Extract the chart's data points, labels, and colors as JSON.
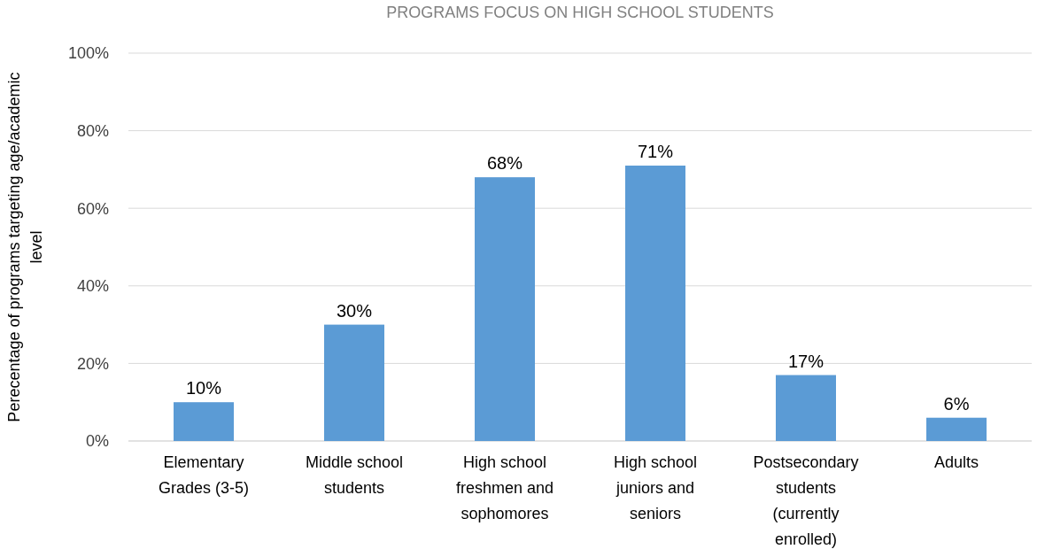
{
  "chart_data": {
    "type": "bar",
    "title": "PROGRAMS FOCUS ON HIGH SCHOOL STUDENTS",
    "ylabel": "Perecentage of programs targeting age/academic level",
    "categories": [
      "Elementary Grades (3-5)",
      "Middle school students",
      "High school freshmen and sophomores",
      "High school juniors and seniors",
      "Postsecondary students (currently enrolled)",
      "Adults"
    ],
    "values": [
      10,
      30,
      68,
      71,
      17,
      6
    ],
    "value_labels": [
      "10%",
      "30%",
      "68%",
      "71%",
      "17%",
      "6%"
    ],
    "color": "#5b9bd5",
    "ylim": [
      0,
      100
    ],
    "yticks": [
      {
        "value": 0,
        "label": "0%"
      },
      {
        "value": 20,
        "label": "20%"
      },
      {
        "value": 40,
        "label": "40%"
      },
      {
        "value": 60,
        "label": "60%"
      },
      {
        "value": 80,
        "label": "80%"
      },
      {
        "value": 100,
        "label": "100%"
      }
    ],
    "grid": "y"
  }
}
